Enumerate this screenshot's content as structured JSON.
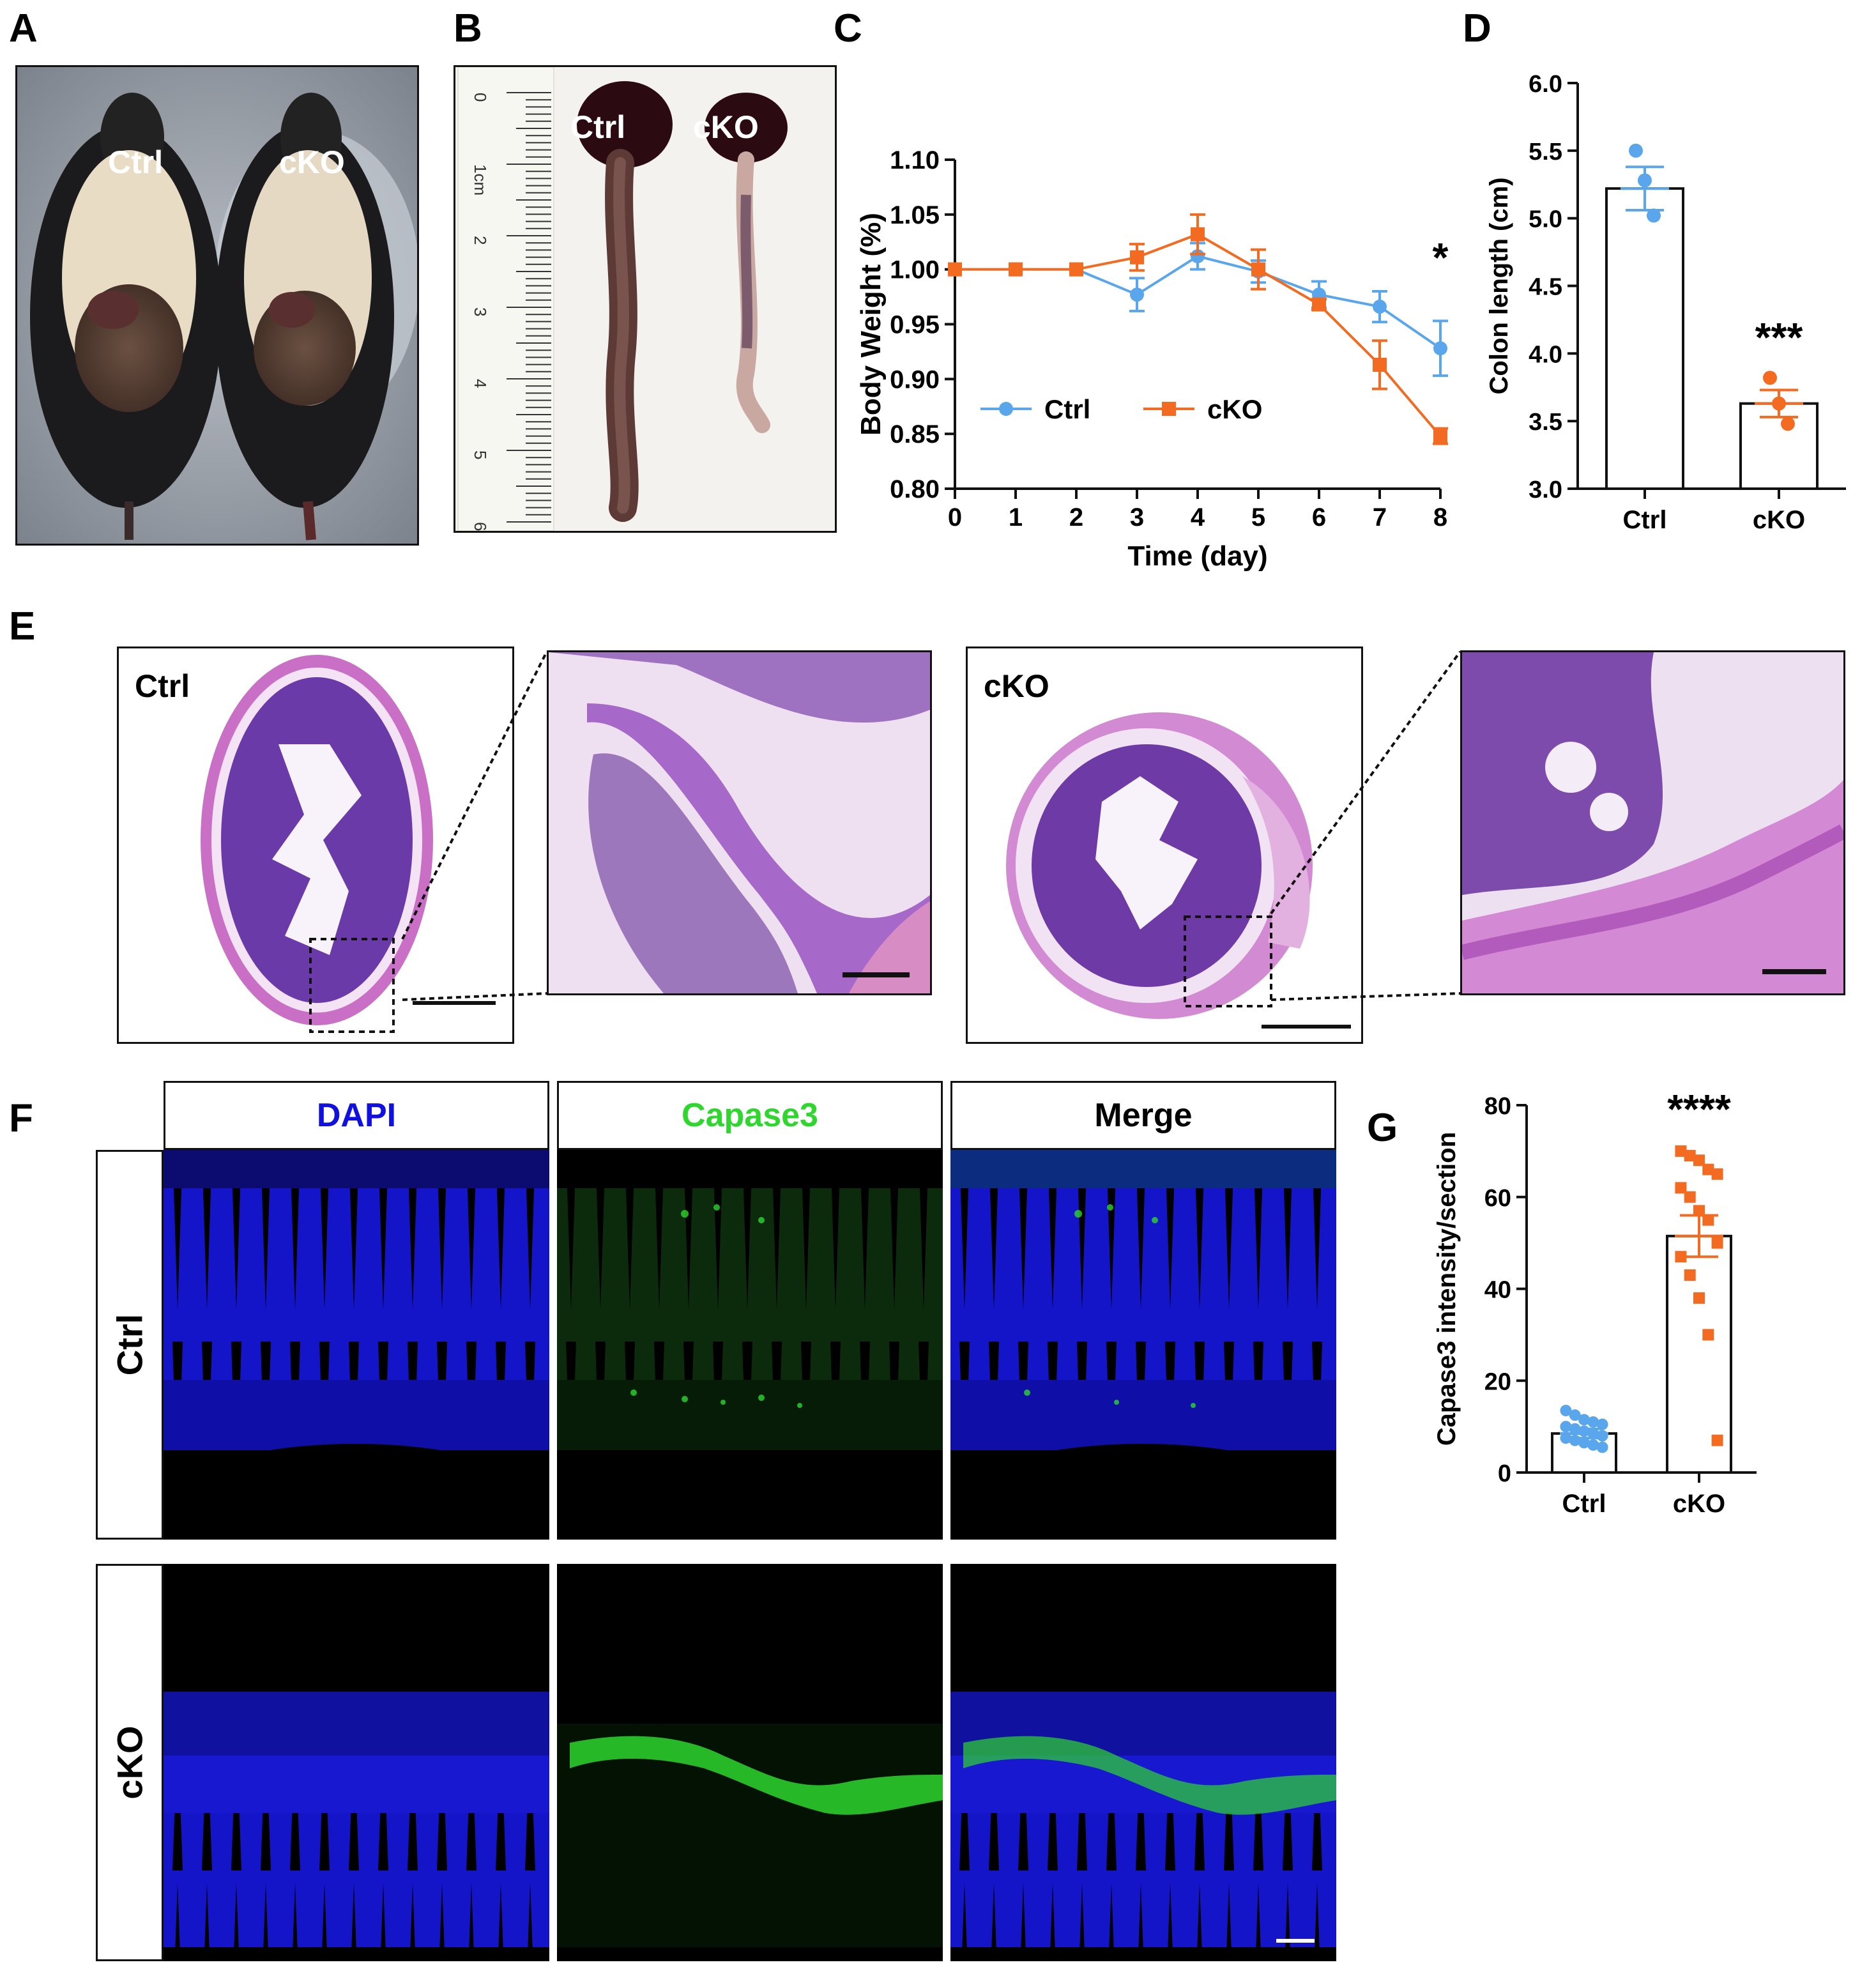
{
  "panels": {
    "A": {
      "label": "A",
      "ctrl": "Ctrl",
      "cko": "cKO"
    },
    "B": {
      "label": "B",
      "ctrl": "Ctrl",
      "cko": "cKO",
      "ruler_ticks": [
        "0",
        "1cm",
        "2",
        "3",
        "4",
        "5",
        "6"
      ]
    },
    "C": {
      "label": "C"
    },
    "D": {
      "label": "D"
    },
    "E": {
      "label": "E",
      "ctrl": "Ctrl",
      "cko": "cKO"
    },
    "F": {
      "label": "F",
      "col_dapi": "DAPI",
      "col_caspase": "Capase3",
      "col_merge": "Merge",
      "row_ctrl": "Ctrl",
      "row_cko": "cKO"
    },
    "G": {
      "label": "G"
    }
  },
  "colors": {
    "ctrl": "#5aa6ec",
    "cko": "#f26b21",
    "dapi": "#1010e0",
    "caspase": "#2ed62e"
  },
  "chart_data": [
    {
      "id": "C",
      "type": "line",
      "xlabel": "Time (day)",
      "ylabel": "Body Weight (%)",
      "xlim": [
        0,
        8
      ],
      "ylim": [
        0.8,
        1.1
      ],
      "x": [
        0,
        1,
        2,
        3,
        4,
        5,
        6,
        7,
        8
      ],
      "xticks": [
        "0",
        "1",
        "2",
        "3",
        "4",
        "5",
        "6",
        "7",
        "8"
      ],
      "yticks": [
        "0.80",
        "0.85",
        "0.90",
        "0.95",
        "1.00",
        "1.05",
        "1.10"
      ],
      "series": [
        {
          "name": "Ctrl",
          "marker": "circle",
          "color": "#5aa6ec",
          "values": [
            1.0,
            1.0,
            1.0,
            0.977,
            1.012,
            0.998,
            0.977,
            0.966,
            0.928
          ],
          "errors": [
            0,
            0,
            0,
            0.015,
            0.012,
            0.01,
            0.012,
            0.014,
            0.025
          ]
        },
        {
          "name": "cKO",
          "marker": "square",
          "color": "#f26b21",
          "values": [
            1.0,
            1.0,
            1.0,
            1.011,
            1.032,
            1.0,
            0.968,
            0.913,
            0.848
          ],
          "errors": [
            0,
            0,
            0,
            0.012,
            0.018,
            0.018,
            0.005,
            0.022,
            0.007
          ]
        }
      ],
      "annotation": "*",
      "legend": "bottom-left"
    },
    {
      "id": "D",
      "type": "bar",
      "ylabel": "Colon length (cm)",
      "ylim": [
        3.0,
        6.0
      ],
      "yticks": [
        "3.0",
        "3.5",
        "4.0",
        "4.5",
        "5.0",
        "5.5",
        "6.0"
      ],
      "categories": [
        "Ctrl",
        "cKO"
      ],
      "values": [
        5.22,
        3.63
      ],
      "errors": [
        0.16,
        0.1
      ],
      "points": [
        [
          5.5,
          5.28,
          5.02
        ],
        [
          3.82,
          3.63,
          3.48
        ]
      ],
      "annotation": "***"
    },
    {
      "id": "G",
      "type": "bar",
      "ylabel": "Capase3 intensity/section",
      "ylim": [
        0,
        80
      ],
      "yticks": [
        "0",
        "20",
        "40",
        "60",
        "80"
      ],
      "categories": [
        "Ctrl",
        "cKO"
      ],
      "values": [
        8.5,
        51.5
      ],
      "errors": [
        1.0,
        4.5
      ],
      "points": [
        [
          13.5,
          12.5,
          11.5,
          11.0,
          10.5,
          10.0,
          9.5,
          9.0,
          8.5,
          8.0,
          7.5,
          7.0,
          6.5,
          6.0,
          5.5
        ],
        [
          70,
          69,
          68,
          66,
          65,
          62,
          60,
          57,
          55,
          50,
          47,
          43,
          38,
          30,
          7
        ]
      ],
      "annotation": "****"
    }
  ]
}
